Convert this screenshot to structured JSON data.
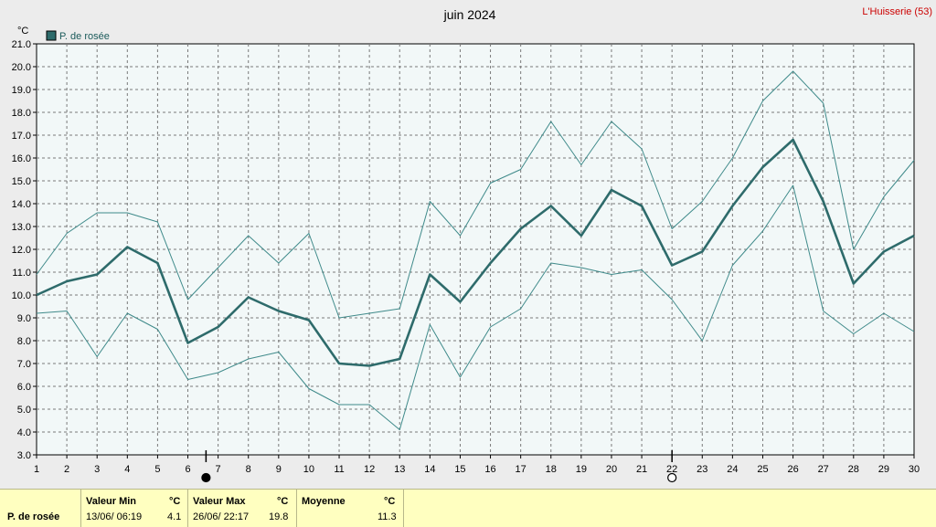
{
  "chart_data": {
    "type": "line",
    "title": "juin 2024",
    "station": "L'Huisserie (53)",
    "unit": "°C",
    "legend": "P. de rosée",
    "series_color": "#2e6b6b",
    "band_color": "#3f8a8a",
    "x": [
      1,
      2,
      3,
      4,
      5,
      6,
      7,
      8,
      9,
      10,
      11,
      12,
      13,
      14,
      15,
      16,
      17,
      18,
      19,
      20,
      21,
      22,
      23,
      24,
      25,
      26,
      27,
      28,
      29,
      30
    ],
    "x_ticks": [
      "1",
      "2",
      "3",
      "4",
      "5",
      "6",
      "7",
      "8",
      "9",
      "10",
      "11",
      "12",
      "13",
      "14",
      "15",
      "16",
      "17",
      "18",
      "19",
      "20",
      "21",
      "22",
      "23",
      "24",
      "25",
      "26",
      "27",
      "28",
      "29",
      "30"
    ],
    "ylim": [
      3.0,
      21.0
    ],
    "y_ticks": [
      "3.0",
      "4.0",
      "5.0",
      "6.0",
      "7.0",
      "8.0",
      "9.0",
      "10.0",
      "11.0",
      "12.0",
      "13.0",
      "14.0",
      "15.0",
      "16.0",
      "17.0",
      "18.0",
      "19.0",
      "20.0",
      "21.0"
    ],
    "series": [
      {
        "role": "mean",
        "values": [
          10.0,
          10.6,
          10.9,
          12.1,
          11.4,
          7.9,
          8.6,
          9.9,
          9.3,
          8.9,
          7.0,
          6.9,
          7.2,
          10.9,
          9.7,
          11.4,
          12.9,
          13.9,
          12.6,
          14.6,
          13.9,
          11.3,
          11.9,
          13.9,
          15.6,
          16.8,
          14.1,
          10.5,
          11.9,
          12.6
        ]
      },
      {
        "role": "max",
        "values": [
          10.9,
          12.7,
          13.6,
          13.6,
          13.2,
          9.8,
          11.2,
          12.6,
          11.4,
          12.7,
          9.0,
          9.2,
          9.4,
          14.1,
          12.6,
          14.9,
          15.5,
          17.6,
          15.7,
          17.6,
          16.4,
          12.9,
          14.1,
          16.0,
          18.5,
          19.8,
          18.4,
          12.0,
          14.3,
          15.9
        ]
      },
      {
        "role": "min",
        "values": [
          9.2,
          9.3,
          7.3,
          9.2,
          8.5,
          6.3,
          6.6,
          7.2,
          7.5,
          5.9,
          5.2,
          5.2,
          4.1,
          8.7,
          6.4,
          8.6,
          9.4,
          11.4,
          11.2,
          10.9,
          11.1,
          9.8,
          8.0,
          11.3,
          12.8,
          14.8,
          9.3,
          8.3,
          9.2,
          8.4
        ]
      }
    ],
    "moon_markers": [
      {
        "x": 6.6,
        "phase": "new"
      },
      {
        "x": 22.0,
        "phase": "full"
      }
    ],
    "grid": true
  },
  "stats": {
    "row_label": "P. de rosée",
    "min": {
      "header": "Valeur Min",
      "unit": "°C",
      "date": "13/06/  06:19",
      "value": "4.1"
    },
    "max": {
      "header": "Valeur Max",
      "unit": "°C",
      "date": "26/06/  22:17",
      "value": "19.8"
    },
    "mean": {
      "header": "Moyenne",
      "unit": "°C",
      "value": "11.3"
    }
  }
}
